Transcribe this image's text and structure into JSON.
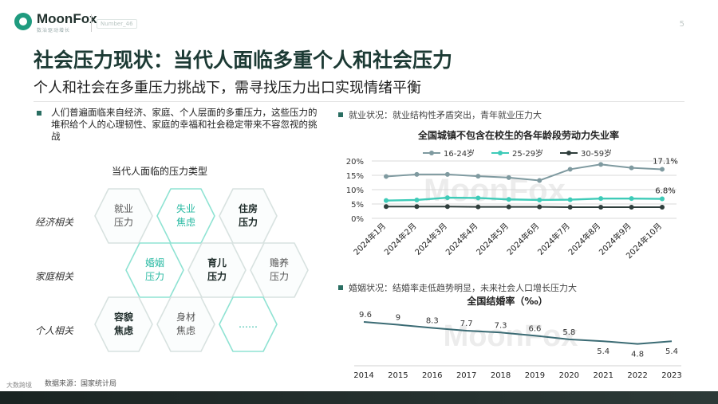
{
  "brand": {
    "name": "MoonFox",
    "sub": "数治驱动增长",
    "tag": "Number_46",
    "page": "5"
  },
  "title": "社会压力现状：当代人面临多重个人和社会压力",
  "subtitle": "个人和社会在多重压力挑战下，需寻找压力出口实现情绪平衡",
  "left": {
    "bullet": "人们普遍面临来自经济、家庭、个人层面的多重压力，这些压力的堆积给个人的心理韧性、家庭的幸福和社会稳定带来不容忽视的挑战",
    "diagram_title": "当代人面临的压力类型",
    "rows": [
      "经济相关",
      "家庭相关",
      "个人相关"
    ],
    "hexes": [
      {
        "l1": "就业",
        "l2": "压力",
        "kind": "plain"
      },
      {
        "l1": "失业",
        "l2": "焦虑",
        "kind": "accent"
      },
      {
        "l1": "住房",
        "l2": "压力",
        "kind": "dark"
      },
      {
        "l1": "婚姻",
        "l2": "压力",
        "kind": "accent"
      },
      {
        "l1": "育儿",
        "l2": "压力",
        "kind": "dark"
      },
      {
        "l1": "赡养",
        "l2": "压力",
        "kind": "plain"
      },
      {
        "l1": "容貌",
        "l2": "焦虑",
        "kind": "dark"
      },
      {
        "l1": "身材",
        "l2": "焦虑",
        "kind": "plain"
      },
      {
        "l1": "……",
        "l2": "",
        "kind": "accent"
      }
    ],
    "source": "数据来源：国家统计局"
  },
  "right": {
    "sec1": "就业状况：就业结构性矛盾突出，青年就业压力大",
    "sec2": "婚姻状况：结婚率走低趋势明显，未来社会人口增长压力大"
  },
  "watermark_text": "MoonFox",
  "bottom_watermark": "大数跨境",
  "chart_data": [
    {
      "type": "line",
      "title": "全国城镇不包含在校生的各年龄段劳动力失业率",
      "categories": [
        "2024年1月",
        "2024年2月",
        "2024年3月",
        "2024年4月",
        "2024年5月",
        "2024年6月",
        "2024年7月",
        "2024年8月",
        "2024年9月",
        "2024年10月"
      ],
      "series": [
        {
          "name": "16-24岁",
          "color": "#7f9aa0",
          "values": [
            14.6,
            15.3,
            15.3,
            14.7,
            14.2,
            13.2,
            17.1,
            18.8,
            17.6,
            17.1
          ]
        },
        {
          "name": "25-29岁",
          "color": "#3ecbb8",
          "values": [
            6.2,
            6.4,
            7.2,
            7.1,
            6.6,
            6.4,
            6.5,
            6.9,
            6.9,
            6.8
          ]
        },
        {
          "name": "30-59岁",
          "color": "#2f3e3c",
          "values": [
            4.1,
            4.1,
            4.1,
            4.0,
            4.0,
            4.0,
            3.9,
            3.9,
            3.9,
            3.9
          ]
        }
      ],
      "data_labels": [
        {
          "series": 0,
          "index": 9,
          "text": "17.1%"
        },
        {
          "series": 1,
          "index": 9,
          "text": "6.8%"
        }
      ],
      "yticks": [
        "20%",
        "15%",
        "10%",
        "5%",
        "0%"
      ],
      "ylim": [
        0,
        20
      ],
      "legend": "top",
      "grid": true
    },
    {
      "type": "line",
      "title": "全国结婚率（‰）",
      "categories": [
        "2014",
        "2015",
        "2016",
        "2017",
        "2018",
        "2019",
        "2020",
        "2021",
        "2022",
        "2023"
      ],
      "values": [
        9.6,
        9.0,
        8.3,
        7.7,
        7.3,
        6.6,
        5.8,
        5.4,
        4.8,
        5.4
      ],
      "labels": [
        "9.6",
        "9",
        "8.3",
        "7.7",
        "7.3",
        "6.6",
        "5.8",
        "5.4",
        "4.8",
        "5.4"
      ],
      "color": "#3b6b74",
      "ylim": [
        3,
        11
      ],
      "grid": false
    }
  ]
}
